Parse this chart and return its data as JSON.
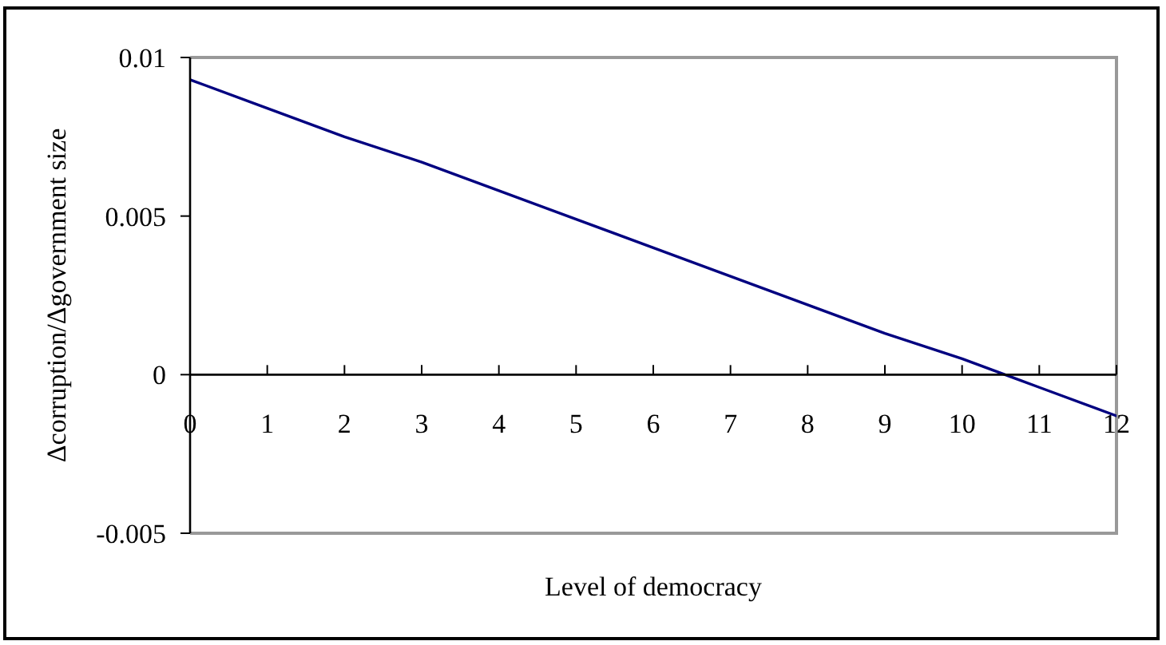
{
  "chart_data": {
    "type": "line",
    "xlabel": "Level of democracy",
    "ylabel": "Δcorruption/Δgovernment size",
    "x": [
      0,
      1,
      2,
      3,
      4,
      5,
      6,
      7,
      8,
      9,
      10,
      11,
      12
    ],
    "series": [
      {
        "color": "#000080",
        "values": [
          0.0093,
          0.0084,
          0.0075,
          0.0067,
          0.0058,
          0.0049,
          0.004,
          0.0031,
          0.0022,
          0.0013,
          0.0005,
          -0.0004,
          -0.0013
        ]
      }
    ],
    "xlim": [
      0,
      12
    ],
    "xticks": [
      0,
      1,
      2,
      3,
      4,
      5,
      6,
      7,
      8,
      9,
      10,
      11,
      12
    ],
    "ylim": [
      -0.005,
      0.01
    ],
    "yticks": [
      -0.005,
      0,
      0.005,
      0.01
    ],
    "marker": "none",
    "line_style": "solid"
  }
}
